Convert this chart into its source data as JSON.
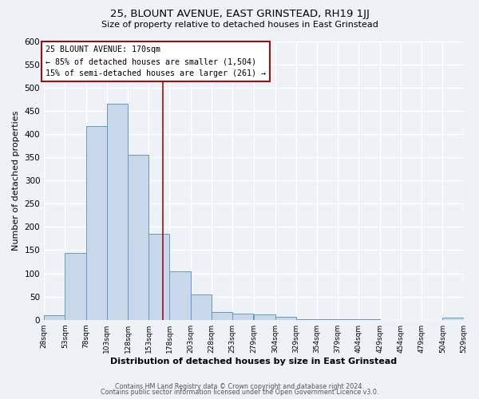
{
  "title": "25, BLOUNT AVENUE, EAST GRINSTEAD, RH19 1JJ",
  "subtitle": "Size of property relative to detached houses in East Grinstead",
  "xlabel": "Distribution of detached houses by size in East Grinstead",
  "ylabel": "Number of detached properties",
  "bin_edges": [
    28,
    53,
    78,
    103,
    128,
    153,
    178,
    203,
    228,
    253,
    279,
    304,
    329,
    354,
    379,
    404,
    429,
    454,
    479,
    504,
    529
  ],
  "bar_heights": [
    10,
    143,
    417,
    465,
    355,
    185,
    104,
    55,
    17,
    13,
    11,
    7,
    2,
    1,
    1,
    1,
    0,
    0,
    0,
    5
  ],
  "bar_color": "#c8d8ea",
  "bar_edge_color": "#6699bb",
  "property_value": 170,
  "vline_color": "#991111",
  "ylim": [
    0,
    600
  ],
  "yticks": [
    0,
    50,
    100,
    150,
    200,
    250,
    300,
    350,
    400,
    450,
    500,
    550,
    600
  ],
  "annotation_line1": "25 BLOUNT AVENUE: 170sqm",
  "annotation_line2": "← 85% of detached houses are smaller (1,504)",
  "annotation_line3": "15% of semi-detached houses are larger (261) →",
  "annotation_box_color": "#991111",
  "background_color": "#eef2f7",
  "grid_color": "#ffffff",
  "footer_line1": "Contains HM Land Registry data © Crown copyright and database right 2024.",
  "footer_line2": "Contains public sector information licensed under the Open Government Licence v3.0.",
  "tick_labels": [
    "28sqm",
    "53sqm",
    "78sqm",
    "103sqm",
    "128sqm",
    "153sqm",
    "178sqm",
    "203sqm",
    "228sqm",
    "253sqm",
    "279sqm",
    "304sqm",
    "329sqm",
    "354sqm",
    "379sqm",
    "404sqm",
    "429sqm",
    "454sqm",
    "479sqm",
    "504sqm",
    "529sqm"
  ]
}
